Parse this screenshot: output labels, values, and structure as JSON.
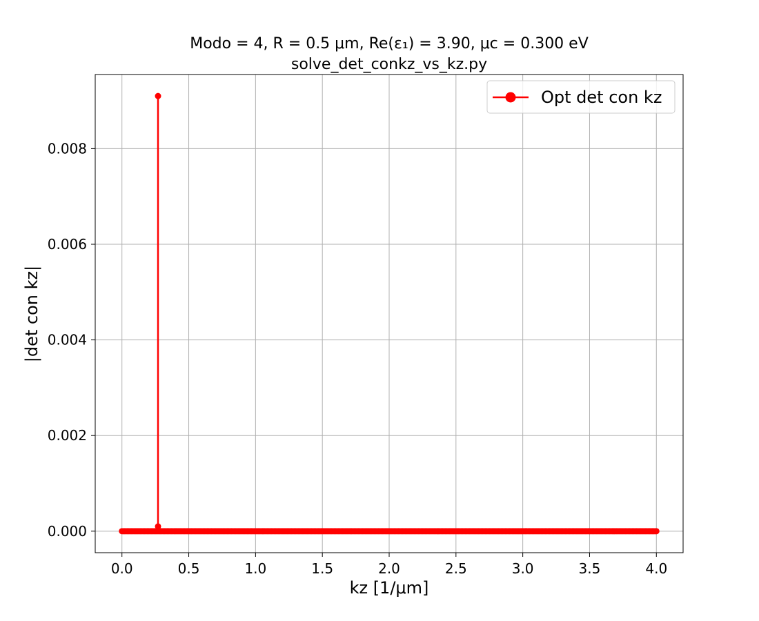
{
  "chart_data": {
    "type": "line",
    "title": "Modo = 4, R = 0.5 μm, Re(ε₁) = 3.90, μc = 0.300 eV",
    "subtitle": "solve_det_conkz_vs_kz.py",
    "xlabel": "kz [1/μm]",
    "ylabel": "|det con kz|",
    "xlim": [
      -0.2,
      4.2
    ],
    "ylim": [
      -0.00045,
      0.00955
    ],
    "x_ticks": [
      0.0,
      0.5,
      1.0,
      1.5,
      2.0,
      2.5,
      3.0,
      3.5,
      4.0
    ],
    "x_tick_labels": [
      "0.0",
      "0.5",
      "1.0",
      "1.5",
      "2.0",
      "2.5",
      "3.0",
      "3.5",
      "4.0"
    ],
    "y_ticks": [
      0.0,
      0.002,
      0.004,
      0.006,
      0.008
    ],
    "y_tick_labels": [
      "0.000",
      "0.002",
      "0.004",
      "0.006",
      "0.008"
    ],
    "grid": true,
    "legend_position": "top-right",
    "color": "#ff0000",
    "series": [
      {
        "name": "Opt det con kz",
        "x_start": 0.0,
        "x_end": 4.0,
        "num_points": 401,
        "baseline": 0.0,
        "peaks": [
          {
            "x": 0.27,
            "y": 0.0091
          },
          {
            "x": 0.27,
            "y": 0.0001
          }
        ]
      }
    ]
  }
}
